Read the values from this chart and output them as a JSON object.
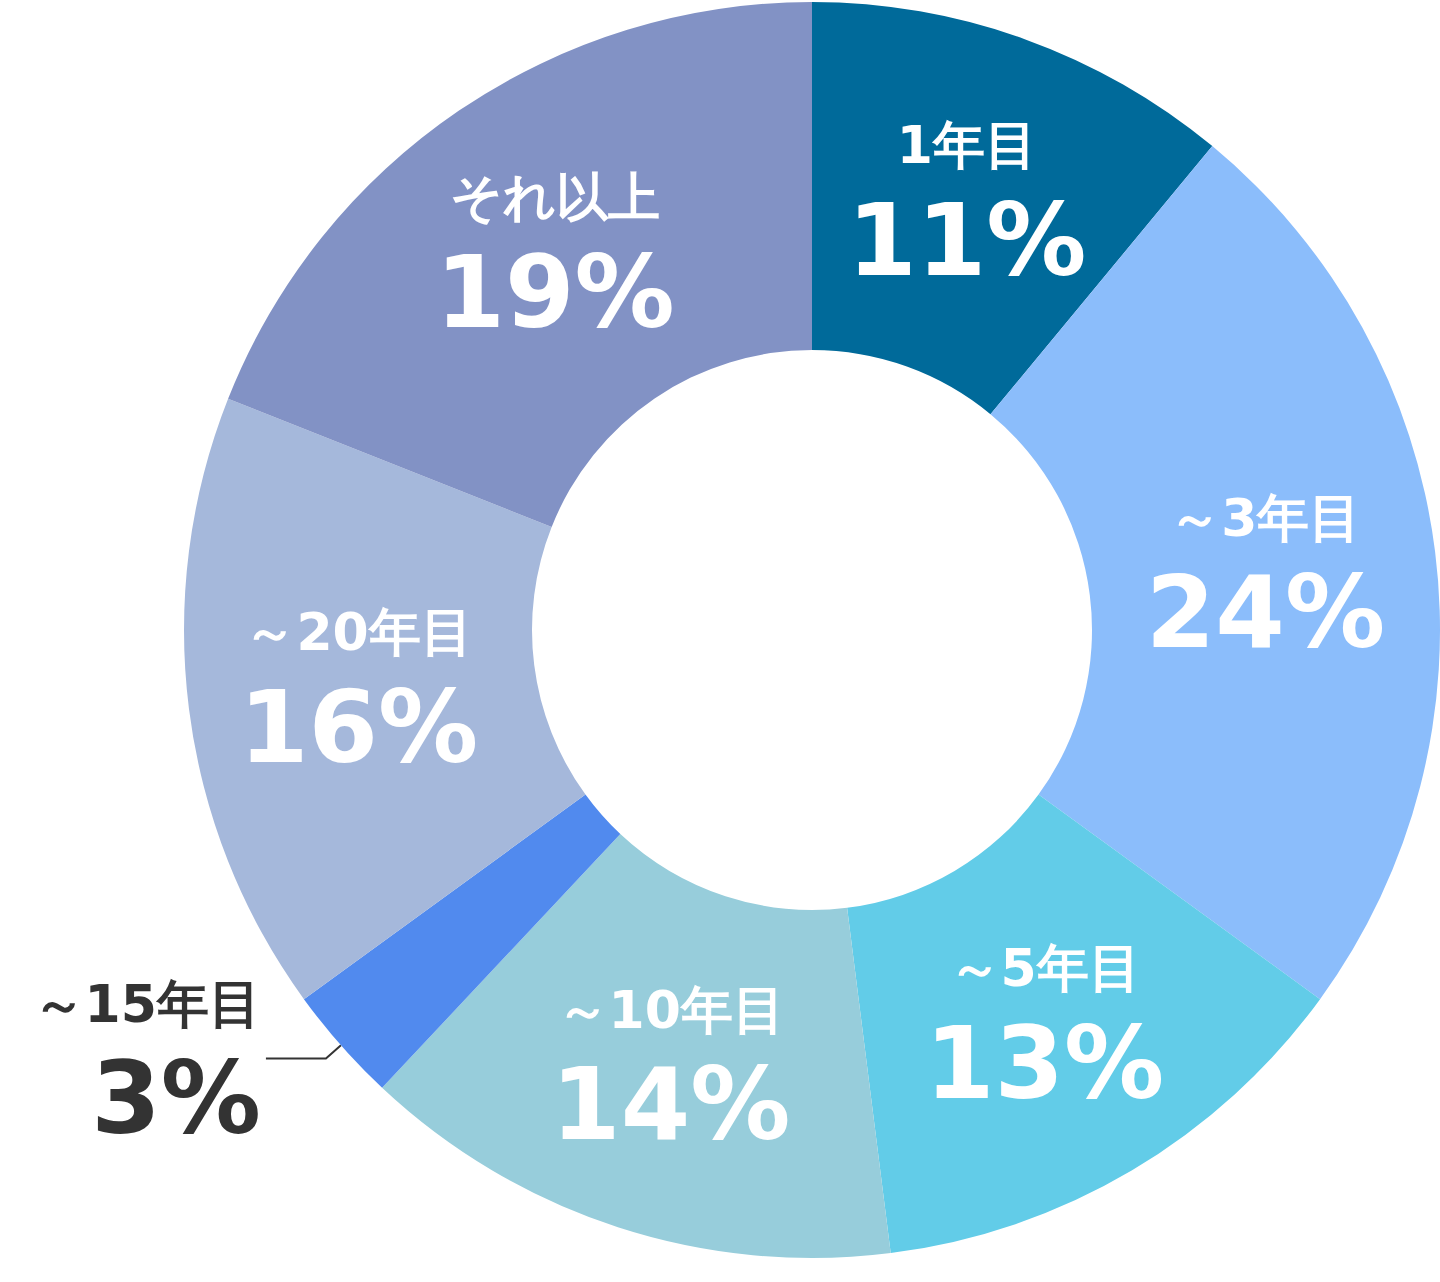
{
  "chart_data": {
    "type": "donut",
    "categories": [
      "1年目",
      "～3年目",
      "～5年目",
      "～10年目",
      "～15年目",
      "～20年目",
      "それ以上"
    ],
    "values": [
      11,
      24,
      13,
      14,
      3,
      16,
      19
    ],
    "colors": [
      "#006a9a",
      "#8bbdfb",
      "#62cce8",
      "#97cddb",
      "#518aee",
      "#a5b8db",
      "#8292c5"
    ],
    "value_labels": [
      "11%",
      "24%",
      "13%",
      "14%",
      "3%",
      "16%",
      "19%"
    ],
    "legend": false
  }
}
